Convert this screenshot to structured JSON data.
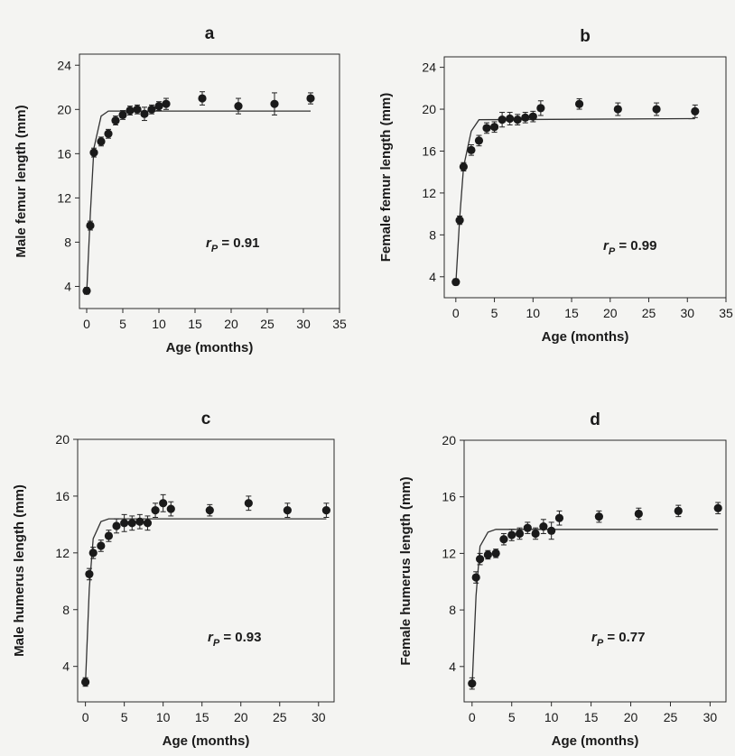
{
  "chart_data": [
    {
      "type": "scatter",
      "panel": "a",
      "xlabel": "Age (months)",
      "ylabel": "Male  femur length (mm)",
      "xlim": [
        -1,
        35
      ],
      "ylim": [
        2,
        25
      ],
      "xticks": [
        0,
        5,
        10,
        15,
        20,
        25,
        30,
        35
      ],
      "yticks": [
        4,
        8,
        12,
        16,
        20,
        24
      ],
      "annotation": {
        "r": "r",
        "sub": "P",
        "rest": " = 0.91"
      },
      "points": [
        {
          "x": 0,
          "y": 3.6,
          "err": 0.3
        },
        {
          "x": 0.5,
          "y": 9.5,
          "err": 0.4
        },
        {
          "x": 1,
          "y": 16.1,
          "err": 0.4
        },
        {
          "x": 2,
          "y": 17.1,
          "err": 0.4
        },
        {
          "x": 3,
          "y": 17.8,
          "err": 0.4
        },
        {
          "x": 4,
          "y": 19.0,
          "err": 0.4
        },
        {
          "x": 5,
          "y": 19.5,
          "err": 0.4
        },
        {
          "x": 6,
          "y": 19.9,
          "err": 0.4
        },
        {
          "x": 7,
          "y": 20.0,
          "err": 0.4
        },
        {
          "x": 8,
          "y": 19.6,
          "err": 0.6
        },
        {
          "x": 9,
          "y": 20.0,
          "err": 0.4
        },
        {
          "x": 10,
          "y": 20.3,
          "err": 0.4
        },
        {
          "x": 11,
          "y": 20.5,
          "err": 0.5
        },
        {
          "x": 16,
          "y": 21.0,
          "err": 0.6
        },
        {
          "x": 21,
          "y": 20.3,
          "err": 0.7
        },
        {
          "x": 26,
          "y": 20.5,
          "err": 1.0
        },
        {
          "x": 31,
          "y": 21.0,
          "err": 0.5
        }
      ],
      "fit": {
        "x": [
          0,
          0.5,
          1,
          2,
          3,
          31
        ],
        "y": [
          3.4,
          10.5,
          16.5,
          19.4,
          19.85,
          19.85
        ]
      }
    },
    {
      "type": "scatter",
      "panel": "b",
      "xlabel": "Age (months)",
      "ylabel": "Female  femur length (mm)",
      "xlim": [
        -1.5,
        35
      ],
      "ylim": [
        2,
        25
      ],
      "xticks": [
        0,
        5,
        10,
        15,
        20,
        25,
        30,
        35
      ],
      "yticks": [
        4,
        8,
        12,
        16,
        20,
        24
      ],
      "annotation": {
        "r": "r",
        "sub": "P",
        "rest": " = 0.99"
      },
      "points": [
        {
          "x": 0,
          "y": 3.5,
          "err": 0.3
        },
        {
          "x": 0.5,
          "y": 9.4,
          "err": 0.4
        },
        {
          "x": 1,
          "y": 14.5,
          "err": 0.4
        },
        {
          "x": 2,
          "y": 16.1,
          "err": 0.5
        },
        {
          "x": 3,
          "y": 17.0,
          "err": 0.5
        },
        {
          "x": 4,
          "y": 18.2,
          "err": 0.5
        },
        {
          "x": 5,
          "y": 18.3,
          "err": 0.5
        },
        {
          "x": 6,
          "y": 19.0,
          "err": 0.7
        },
        {
          "x": 7,
          "y": 19.1,
          "err": 0.6
        },
        {
          "x": 8,
          "y": 19.0,
          "err": 0.5
        },
        {
          "x": 9,
          "y": 19.2,
          "err": 0.5
        },
        {
          "x": 10,
          "y": 19.3,
          "err": 0.5
        },
        {
          "x": 11,
          "y": 20.1,
          "err": 0.7
        },
        {
          "x": 16,
          "y": 20.5,
          "err": 0.5
        },
        {
          "x": 21,
          "y": 20.0,
          "err": 0.6
        },
        {
          "x": 26,
          "y": 20.0,
          "err": 0.6
        },
        {
          "x": 31,
          "y": 19.8,
          "err": 0.6
        }
      ],
      "fit": {
        "x": [
          0,
          0.5,
          1,
          2,
          3,
          31
        ],
        "y": [
          3.3,
          9.6,
          14.5,
          17.9,
          19.0,
          19.1
        ]
      }
    },
    {
      "type": "scatter",
      "panel": "c",
      "xlabel": "Age (months)",
      "ylabel": "Male  humerus length (mm)",
      "xlim": [
        -1,
        32
      ],
      "ylim": [
        1.5,
        20
      ],
      "xticks": [
        0,
        5,
        10,
        15,
        20,
        25,
        30
      ],
      "yticks": [
        4,
        8,
        12,
        16,
        20
      ],
      "annotation": {
        "r": "r",
        "sub": "P",
        "rest": " = 0.93"
      },
      "points": [
        {
          "x": 0,
          "y": 2.9,
          "err": 0.3
        },
        {
          "x": 0.5,
          "y": 10.5,
          "err": 0.4
        },
        {
          "x": 1,
          "y": 12.0,
          "err": 0.4
        },
        {
          "x": 2,
          "y": 12.5,
          "err": 0.4
        },
        {
          "x": 3,
          "y": 13.2,
          "err": 0.4
        },
        {
          "x": 4,
          "y": 13.9,
          "err": 0.5
        },
        {
          "x": 5,
          "y": 14.1,
          "err": 0.6
        },
        {
          "x": 6,
          "y": 14.1,
          "err": 0.5
        },
        {
          "x": 7,
          "y": 14.2,
          "err": 0.5
        },
        {
          "x": 8,
          "y": 14.1,
          "err": 0.5
        },
        {
          "x": 9,
          "y": 15.0,
          "err": 0.5
        },
        {
          "x": 10,
          "y": 15.5,
          "err": 0.6
        },
        {
          "x": 11,
          "y": 15.1,
          "err": 0.5
        },
        {
          "x": 16,
          "y": 15.0,
          "err": 0.4
        },
        {
          "x": 21,
          "y": 15.5,
          "err": 0.5
        },
        {
          "x": 26,
          "y": 15.0,
          "err": 0.5
        },
        {
          "x": 31,
          "y": 15.0,
          "err": 0.5
        }
      ],
      "fit": {
        "x": [
          0,
          0.5,
          1,
          2,
          3,
          31
        ],
        "y": [
          2.7,
          9.5,
          13.0,
          14.2,
          14.4,
          14.4
        ]
      }
    },
    {
      "type": "scatter",
      "panel": "d",
      "xlabel": "Age (months)",
      "ylabel": "Female  humerus length (mm)",
      "xlim": [
        -1,
        32
      ],
      "ylim": [
        1.5,
        20
      ],
      "xticks": [
        0,
        5,
        10,
        15,
        20,
        25,
        30
      ],
      "yticks": [
        4,
        8,
        12,
        16,
        20
      ],
      "annotation": {
        "r": "r",
        "sub": "P",
        "rest": " = 0.77"
      },
      "points": [
        {
          "x": 0,
          "y": 2.8,
          "err": 0.4
        },
        {
          "x": 0.5,
          "y": 10.3,
          "err": 0.4
        },
        {
          "x": 1,
          "y": 11.6,
          "err": 0.4
        },
        {
          "x": 2,
          "y": 11.9,
          "err": 0.3
        },
        {
          "x": 3,
          "y": 12.0,
          "err": 0.3
        },
        {
          "x": 4,
          "y": 13.0,
          "err": 0.4
        },
        {
          "x": 5,
          "y": 13.3,
          "err": 0.4
        },
        {
          "x": 6,
          "y": 13.4,
          "err": 0.4
        },
        {
          "x": 7,
          "y": 13.8,
          "err": 0.4
        },
        {
          "x": 8,
          "y": 13.4,
          "err": 0.4
        },
        {
          "x": 9,
          "y": 13.9,
          "err": 0.5
        },
        {
          "x": 10,
          "y": 13.6,
          "err": 0.6
        },
        {
          "x": 11,
          "y": 14.5,
          "err": 0.5
        },
        {
          "x": 16,
          "y": 14.6,
          "err": 0.4
        },
        {
          "x": 21,
          "y": 14.8,
          "err": 0.4
        },
        {
          "x": 26,
          "y": 15.0,
          "err": 0.4
        },
        {
          "x": 31,
          "y": 15.2,
          "err": 0.4
        }
      ],
      "fit": {
        "x": [
          0,
          0.5,
          1,
          2,
          3,
          31
        ],
        "y": [
          2.5,
          9.0,
          12.5,
          13.5,
          13.7,
          13.7
        ]
      }
    }
  ]
}
